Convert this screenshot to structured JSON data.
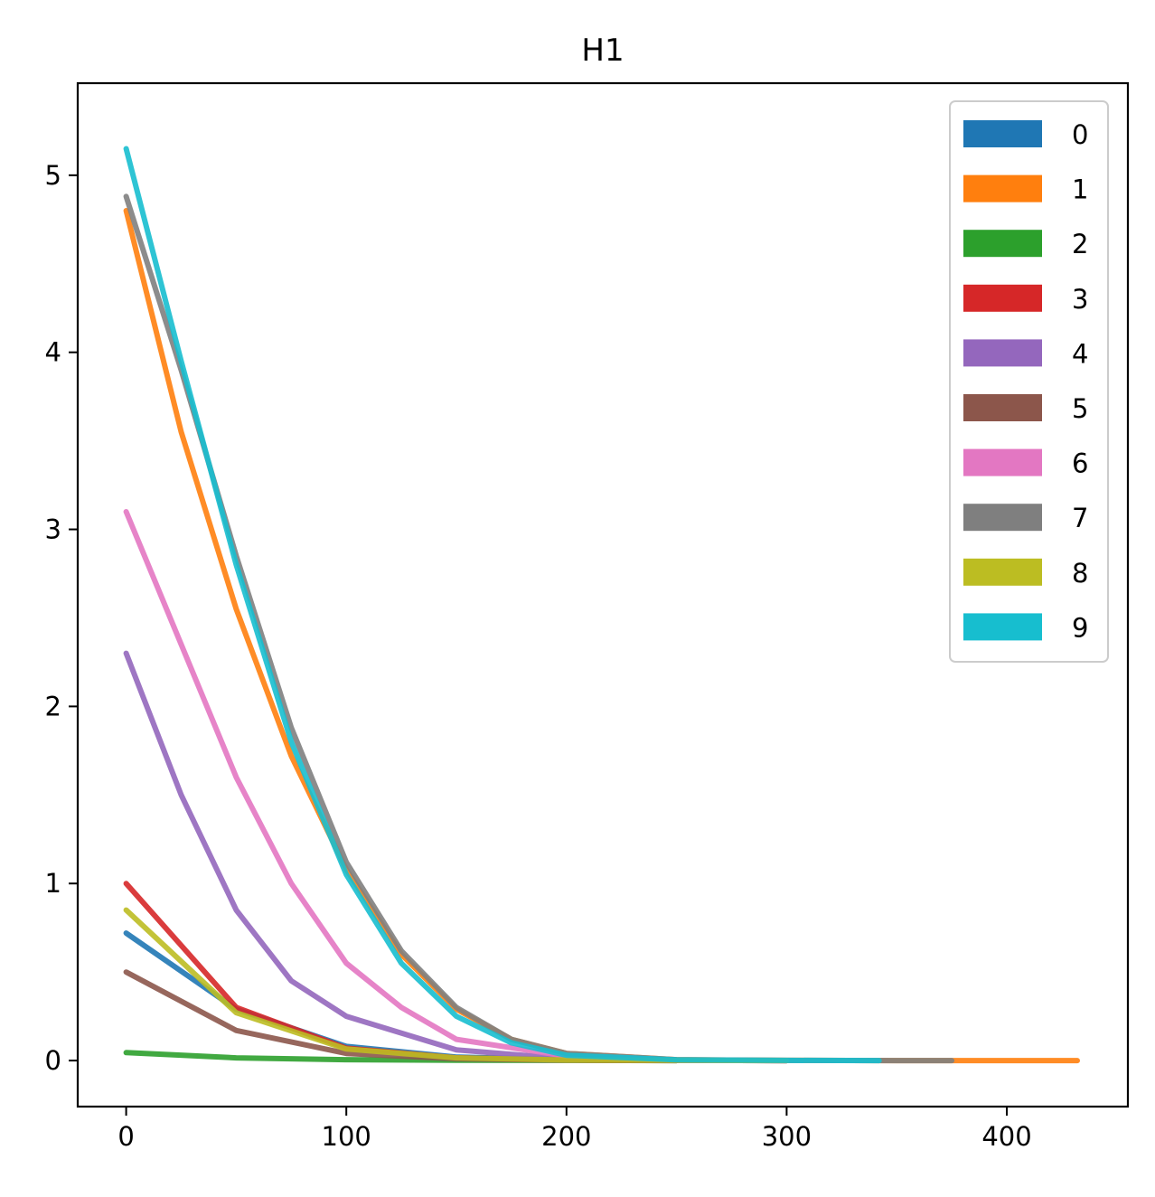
{
  "chart_data": {
    "type": "line",
    "title": "H1",
    "xlabel": "",
    "ylabel": "",
    "xlim": [
      -22,
      455
    ],
    "ylim": [
      -0.26,
      5.52
    ],
    "x_ticks": [
      0,
      100,
      200,
      300,
      400
    ],
    "y_ticks": [
      0,
      1,
      2,
      3,
      4,
      5
    ],
    "grid": false,
    "legend_position": "top-right",
    "series": [
      {
        "name": "0",
        "color": "#1f77b4",
        "x": [
          0,
          50,
          100,
          150,
          200,
          250,
          300
        ],
        "y": [
          0.72,
          0.29,
          0.08,
          0.02,
          0.005,
          0.001,
          0
        ]
      },
      {
        "name": "1",
        "color": "#ff7f0e",
        "x": [
          0,
          25,
          50,
          75,
          100,
          125,
          150,
          175,
          200,
          250,
          300,
          350,
          400,
          432
        ],
        "y": [
          4.8,
          3.55,
          2.55,
          1.72,
          1.08,
          0.6,
          0.29,
          0.12,
          0.04,
          0.005,
          0.001,
          0,
          0,
          0
        ]
      },
      {
        "name": "2",
        "color": "#2ca02c",
        "x": [
          0,
          50,
          100,
          150,
          200,
          250
        ],
        "y": [
          0.045,
          0.015,
          0.005,
          0.002,
          0.001,
          0
        ]
      },
      {
        "name": "3",
        "color": "#d62728",
        "x": [
          0,
          50,
          100,
          150,
          200,
          250,
          300
        ],
        "y": [
          1.0,
          0.3,
          0.07,
          0.015,
          0.003,
          0.001,
          0
        ]
      },
      {
        "name": "4",
        "color": "#9467bd",
        "x": [
          0,
          25,
          50,
          75,
          100,
          150,
          200,
          250,
          300
        ],
        "y": [
          2.3,
          1.5,
          0.85,
          0.45,
          0.25,
          0.06,
          0.01,
          0.002,
          0
        ]
      },
      {
        "name": "5",
        "color": "#8c564b",
        "x": [
          0,
          50,
          100,
          150,
          200,
          250
        ],
        "y": [
          0.5,
          0.17,
          0.04,
          0.01,
          0.002,
          0
        ]
      },
      {
        "name": "6",
        "color": "#e377c2",
        "x": [
          0,
          25,
          50,
          75,
          100,
          125,
          150,
          200,
          250,
          300
        ],
        "y": [
          3.1,
          2.35,
          1.6,
          1.0,
          0.55,
          0.3,
          0.12,
          0.025,
          0.003,
          0
        ]
      },
      {
        "name": "7",
        "color": "#7f7f7f",
        "x": [
          0,
          25,
          50,
          75,
          100,
          125,
          150,
          175,
          200,
          250,
          300,
          350,
          375
        ],
        "y": [
          4.88,
          3.9,
          2.85,
          1.88,
          1.12,
          0.62,
          0.3,
          0.12,
          0.04,
          0.005,
          0.001,
          0,
          0
        ]
      },
      {
        "name": "8",
        "color": "#bcbd22",
        "x": [
          0,
          50,
          100,
          150,
          200,
          250,
          300
        ],
        "y": [
          0.85,
          0.27,
          0.065,
          0.015,
          0.003,
          0.001,
          0
        ]
      },
      {
        "name": "9",
        "color": "#17becf",
        "x": [
          0,
          25,
          50,
          75,
          100,
          125,
          150,
          175,
          200,
          250,
          300,
          342
        ],
        "y": [
          5.15,
          3.95,
          2.8,
          1.8,
          1.05,
          0.55,
          0.25,
          0.1,
          0.03,
          0.004,
          0.001,
          0
        ]
      }
    ]
  }
}
